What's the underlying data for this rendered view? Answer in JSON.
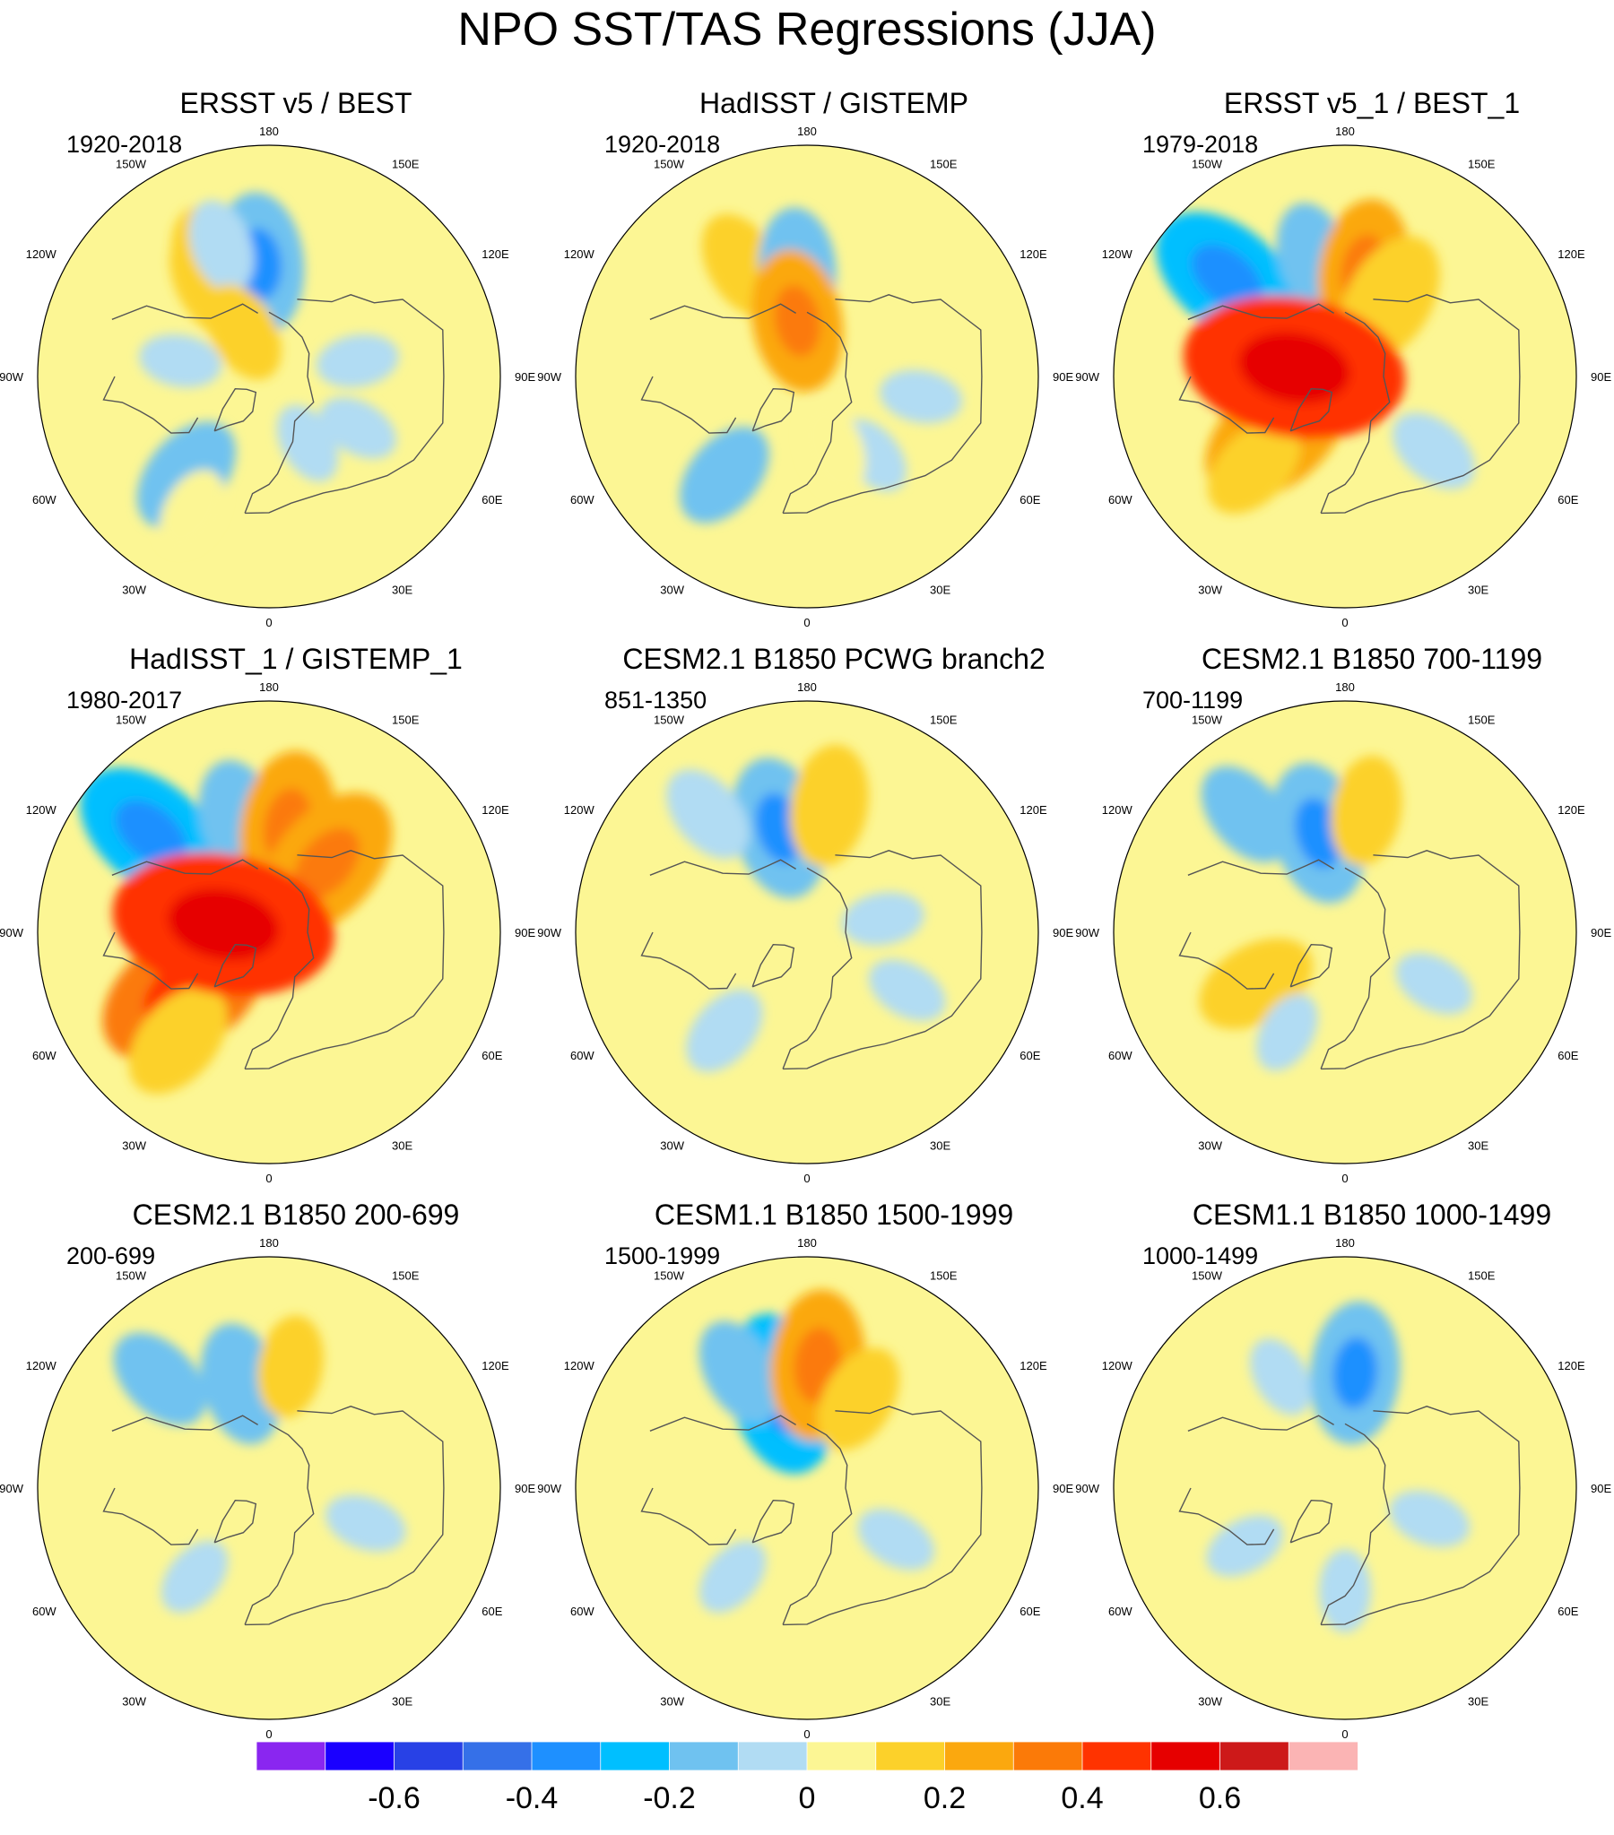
{
  "title": "NPO SST/TAS Regressions (JJA)",
  "lon_labels": [
    "180",
    "150E",
    "120E",
    "90E",
    "60E",
    "30E",
    "0",
    "30W",
    "60W",
    "90W",
    "120W",
    "150W"
  ],
  "panels": [
    {
      "title": "ERSST v5 / BEST",
      "period": "1920-2018"
    },
    {
      "title": "HadISST / GISTEMP",
      "period": "1920-2018"
    },
    {
      "title": "ERSST v5_1 / BEST_1",
      "period": "1979-2018"
    },
    {
      "title": "HadISST_1 / GISTEMP_1",
      "period": "1980-2017"
    },
    {
      "title": "CESM2.1 B1850 PCWG branch2",
      "period": "851-1350"
    },
    {
      "title": "CESM2.1 B1850 700-1199",
      "period": "700-1199"
    },
    {
      "title": "CESM2.1 B1850 200-699",
      "period": "200-699"
    },
    {
      "title": "CESM1.1 B1850 1500-1999",
      "period": "1500-1999"
    },
    {
      "title": "CESM1.1 B1850 1000-1499",
      "period": "1000-1499"
    }
  ],
  "chart_data": {
    "type": "heatmap",
    "projection": "north-polar-stereographic",
    "title": "NPO SST/TAS Regressions (JJA)",
    "colorbar": {
      "levels": [
        -0.7,
        -0.6,
        -0.5,
        -0.4,
        -0.3,
        -0.2,
        -0.1,
        0,
        0.1,
        0.2,
        0.3,
        0.4,
        0.5,
        0.6,
        0.7
      ],
      "colors": [
        "#8a26f0",
        "#1a00ff",
        "#2841e6",
        "#3570e8",
        "#1e90ff",
        "#00bfff",
        "#6fc2f0",
        "#b1dcf3",
        "#fcf694",
        "#fcd12a",
        "#fba80e",
        "#fb7a08",
        "#ff3300",
        "#e60000",
        "#cd1919",
        "#fbb4b4"
      ],
      "tick_values": [
        -0.6,
        -0.4,
        -0.2,
        0,
        0.2,
        0.4,
        0.6
      ],
      "tick_labels": [
        "-0.6",
        "-0.4",
        "-0.2",
        "0",
        "0.2",
        "0.4",
        "0.6"
      ],
      "orientation": "horizontal",
      "placement": "bottom"
    },
    "panels": [
      {
        "title": "ERSST v5 / BEST",
        "period": "1920-2018",
        "background": 0.05,
        "anomalies": [
          {
            "lon": -155,
            "lat": 44,
            "value": 0.18
          },
          {
            "lon": -150,
            "lat": 48,
            "value": 0.15
          },
          {
            "lon": -175,
            "lat": 46,
            "value": -0.2
          },
          {
            "lon": -160,
            "lat": 36,
            "value": -0.08
          },
          {
            "lon": -40,
            "lat": 40,
            "value": -0.15
          },
          {
            "lon": -30,
            "lat": 30,
            "value": 0.06
          },
          {
            "lon": 60,
            "lat": 50,
            "value": -0.05
          },
          {
            "lon": 100,
            "lat": 55,
            "value": -0.05
          },
          {
            "lon": 30,
            "lat": 60,
            "value": -0.05
          },
          {
            "lon": -100,
            "lat": 55,
            "value": -0.05
          },
          {
            "lon": -150,
            "lat": 70,
            "value": 0.1
          }
        ]
      },
      {
        "title": "HadISST / GISTEMP",
        "period": "1920-2018",
        "background": 0.05,
        "anomalies": [
          {
            "lon": -150,
            "lat": 40,
            "value": 0.12
          },
          {
            "lon": -175,
            "lat": 48,
            "value": -0.15
          },
          {
            "lon": -40,
            "lat": 40,
            "value": -0.12
          },
          {
            "lon": 40,
            "lat": 50,
            "value": -0.05
          },
          {
            "lon": 80,
            "lat": 45,
            "value": -0.05
          },
          {
            "lon": -170,
            "lat": 68,
            "value": 0.2
          },
          {
            "lon": 20,
            "lat": 60,
            "value": 0.08
          }
        ]
      },
      {
        "title": "ERSST v5_1 / BEST_1",
        "period": "1979-2018",
        "background": 0.05,
        "anomalies": [
          {
            "lon": -130,
            "lat": 30,
            "value": -0.25
          },
          {
            "lon": -165,
            "lat": 42,
            "value": -0.12
          },
          {
            "lon": 170,
            "lat": 48,
            "value": 0.2
          },
          {
            "lon": 150,
            "lat": 55,
            "value": 0.18
          },
          {
            "lon": -50,
            "lat": 55,
            "value": 0.25
          },
          {
            "lon": -45,
            "lat": 40,
            "value": 0.12
          },
          {
            "lon": -100,
            "lat": 70,
            "value": 0.4
          },
          {
            "lon": 50,
            "lat": 45,
            "value": -0.08
          }
        ]
      },
      {
        "title": "HadISST_1 / GISTEMP_1",
        "period": "1980-2017",
        "background": 0.05,
        "anomalies": [
          {
            "lon": -130,
            "lat": 30,
            "value": -0.25
          },
          {
            "lon": -165,
            "lat": 45,
            "value": -0.15
          },
          {
            "lon": 170,
            "lat": 48,
            "value": 0.22
          },
          {
            "lon": 140,
            "lat": 55,
            "value": 0.25
          },
          {
            "lon": -55,
            "lat": 50,
            "value": 0.3
          },
          {
            "lon": -40,
            "lat": 35,
            "value": 0.15
          },
          {
            "lon": -100,
            "lat": 72,
            "value": 0.4
          }
        ]
      },
      {
        "title": "CESM2.1 B1850 PCWG branch2",
        "period": "851-1350",
        "background": 0.05,
        "anomalies": [
          {
            "lon": -165,
            "lat": 48,
            "value": -0.2
          },
          {
            "lon": -140,
            "lat": 30,
            "value": -0.1
          },
          {
            "lon": 170,
            "lat": 40,
            "value": 0.15
          },
          {
            "lon": -40,
            "lat": 40,
            "value": -0.08
          },
          {
            "lon": 60,
            "lat": 45,
            "value": -0.05
          },
          {
            "lon": 100,
            "lat": 60,
            "value": -0.05
          }
        ]
      },
      {
        "title": "CESM2.1 B1850 700-1199",
        "period": "700-1199",
        "background": 0.05,
        "anomalies": [
          {
            "lon": -165,
            "lat": 50,
            "value": -0.2
          },
          {
            "lon": -140,
            "lat": 30,
            "value": -0.12
          },
          {
            "lon": 170,
            "lat": 42,
            "value": 0.12
          },
          {
            "lon": -60,
            "lat": 50,
            "value": 0.15
          },
          {
            "lon": -30,
            "lat": 45,
            "value": -0.05
          },
          {
            "lon": 60,
            "lat": 50,
            "value": -0.05
          }
        ]
      },
      {
        "title": "CESM2.1 B1850 200-699",
        "period": "200-699",
        "background": 0.05,
        "anomalies": [
          {
            "lon": -165,
            "lat": 48,
            "value": -0.15
          },
          {
            "lon": -135,
            "lat": 30,
            "value": -0.12
          },
          {
            "lon": 170,
            "lat": 42,
            "value": 0.1
          },
          {
            "lon": -40,
            "lat": 45,
            "value": -0.05
          },
          {
            "lon": 70,
            "lat": 50,
            "value": -0.05
          }
        ]
      },
      {
        "title": "CESM1.1 B1850 1500-1999",
        "period": "1500-1999",
        "background": 0.05,
        "anomalies": [
          {
            "lon": -165,
            "lat": 52,
            "value": -0.25
          },
          {
            "lon": -150,
            "lat": 38,
            "value": -0.12
          },
          {
            "lon": 175,
            "lat": 42,
            "value": 0.22
          },
          {
            "lon": 150,
            "lat": 50,
            "value": 0.12
          },
          {
            "lon": -40,
            "lat": 45,
            "value": -0.05
          },
          {
            "lon": 60,
            "lat": 50,
            "value": -0.05
          }
        ]
      },
      {
        "title": "CESM1.1 B1850 1000-1499",
        "period": "1000-1499",
        "background": 0.05,
        "anomalies": [
          {
            "lon": 175,
            "lat": 45,
            "value": -0.2
          },
          {
            "lon": -150,
            "lat": 40,
            "value": -0.05
          },
          {
            "lon": -60,
            "lat": 45,
            "value": -0.05
          },
          {
            "lon": 70,
            "lat": 55,
            "value": -0.05
          },
          {
            "lon": 0,
            "lat": 50,
            "value": -0.05
          }
        ]
      }
    ]
  }
}
